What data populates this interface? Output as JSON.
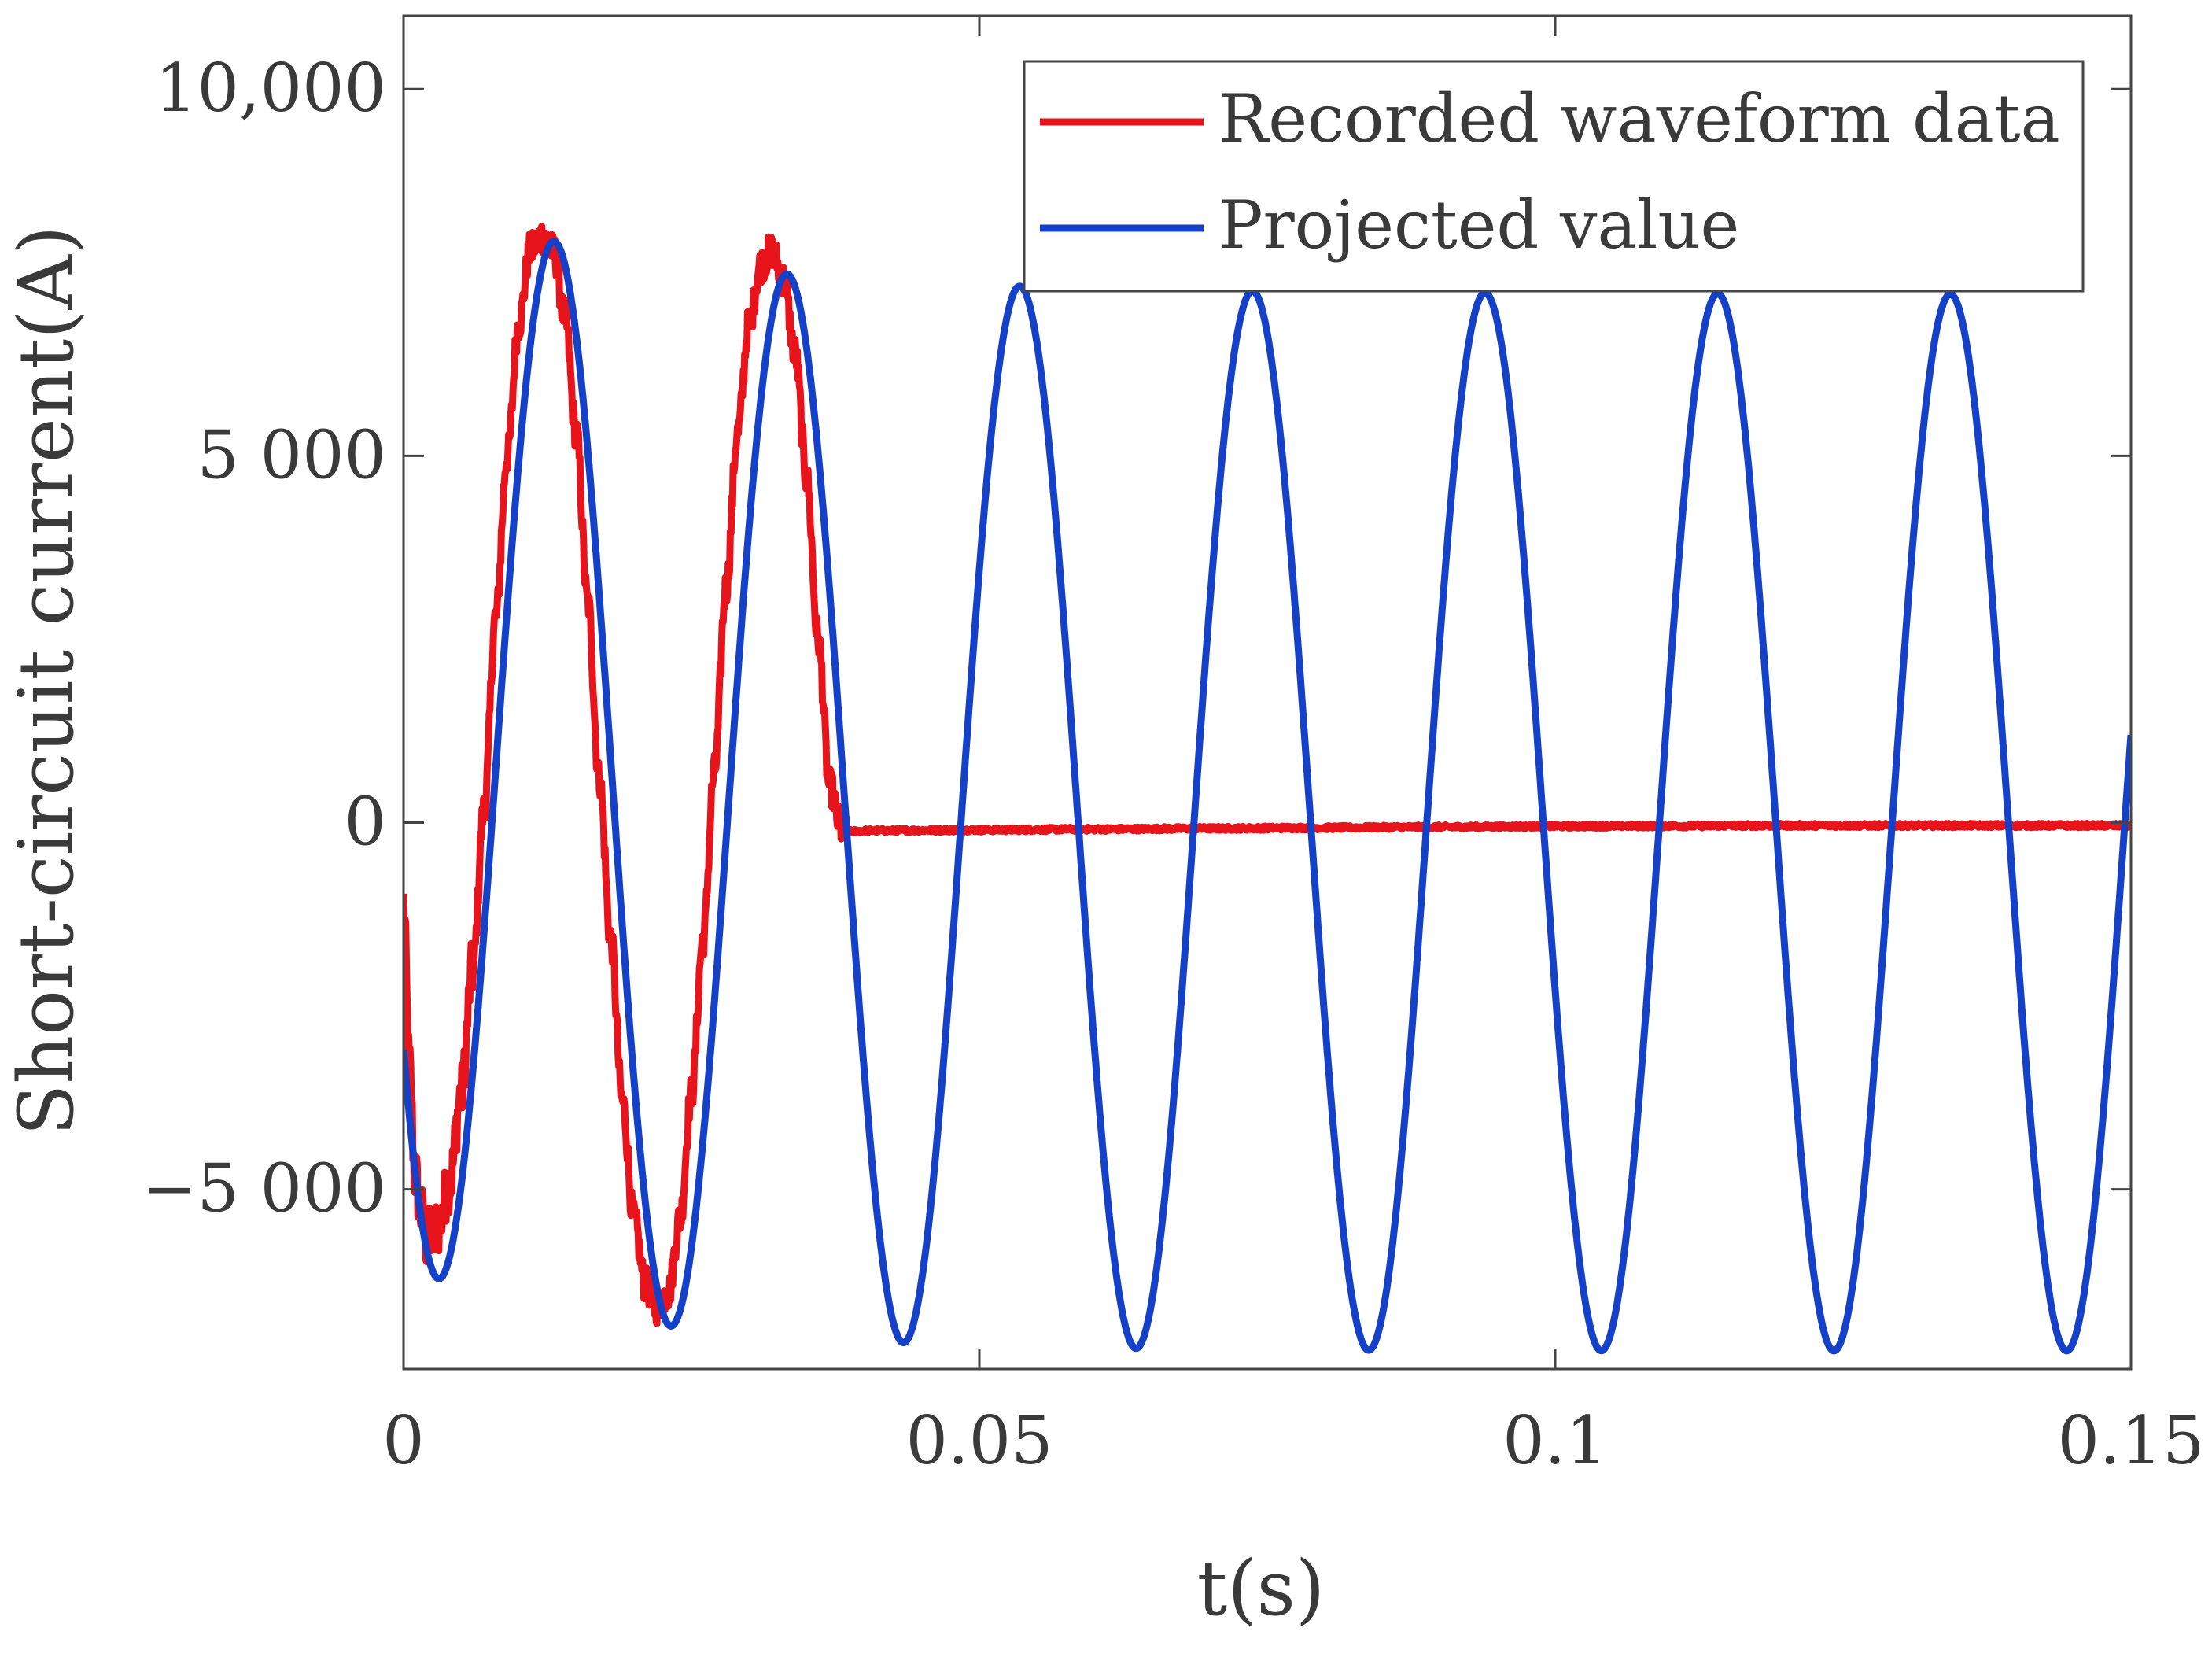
{
  "chart_data": {
    "type": "line",
    "title": "",
    "xlabel": "t(s)",
    "ylabel": "Short-circuit current(A)",
    "xlim": [
      0,
      0.15
    ],
    "ylim": [
      -7450,
      11000
    ],
    "x_ticks": [
      0,
      0.05,
      0.1,
      0.15
    ],
    "x_tick_labels": [
      "0",
      "0.05",
      "0.1",
      "0.15"
    ],
    "y_ticks": [
      -5000,
      0,
      5000,
      10000
    ],
    "y_tick_labels": [
      "−5 000",
      "0",
      "5 000",
      "10,000"
    ],
    "grid": false,
    "legend_position": "top-right",
    "series": [
      {
        "name": "Recorded waveform data",
        "color": "#e8141c",
        "style": "noisy",
        "x": [
          0,
          0.0005,
          0.001,
          0.0015,
          0.002,
          0.0025,
          0.003,
          0.004,
          0.005,
          0.006,
          0.007,
          0.008,
          0.009,
          0.01,
          0.011,
          0.012,
          0.013,
          0.014,
          0.015,
          0.016,
          0.017,
          0.018,
          0.019,
          0.02,
          0.021,
          0.022,
          0.023,
          0.024,
          0.025,
          0.026,
          0.027,
          0.028,
          0.029,
          0.03,
          0.031,
          0.032,
          0.033,
          0.034,
          0.035,
          0.036,
          0.037,
          0.038,
          0.0385,
          0.039,
          0.04,
          0.05,
          0.06,
          0.07,
          0.08,
          0.09,
          0.1,
          0.11,
          0.12,
          0.13,
          0.14,
          0.15
        ],
        "y": [
          -1100,
          -3300,
          -4800,
          -5300,
          -5700,
          -5600,
          -5500,
          -4900,
          -3700,
          -2000,
          200,
          2800,
          5000,
          6800,
          7800,
          8000,
          7800,
          6900,
          5300,
          3000,
          600,
          -1600,
          -3800,
          -5400,
          -6300,
          -6600,
          -6400,
          -5400,
          -3700,
          -1600,
          700,
          3200,
          5300,
          6800,
          7600,
          7800,
          7400,
          6400,
          4700,
          2500,
          500,
          -80,
          -120,
          -120,
          -110,
          -100,
          -90,
          -80,
          -70,
          -60,
          -50,
          -45,
          -40,
          -40,
          -40,
          -40
        ]
      },
      {
        "name": "Projected value",
        "color": "#1540c8",
        "style": "smooth",
        "equation": "y = -(A0 + (A1 - A0) * exp(-t/tau)) * cos(2*pi*f*(t - t0)) + D * exp(-t/tau_dc)",
        "A0": 7200,
        "A1": 7300,
        "tau": 0.04,
        "f": 49.5,
        "t0": 0.003,
        "D": 1250,
        "tau_dc": 0.02,
        "samples": 1500
      }
    ]
  }
}
